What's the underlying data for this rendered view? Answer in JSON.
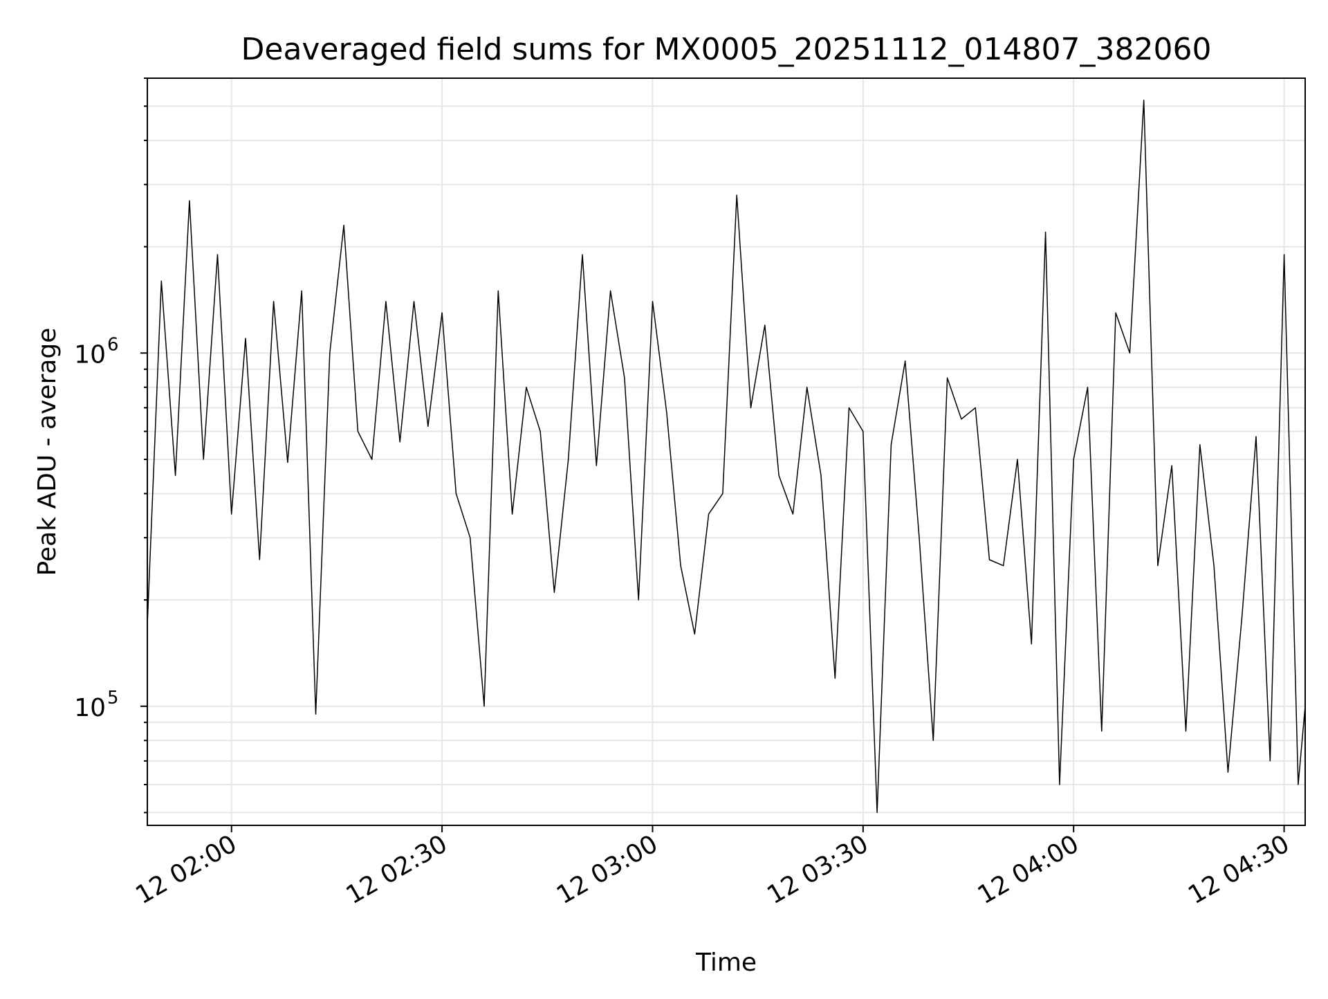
{
  "chart_data": {
    "type": "line",
    "title": "Deaveraged field sums for MX0005_20251112_014807_382060",
    "xlabel": "Time",
    "ylabel": "Peak ADU - average",
    "y_scale": "log",
    "ylim": [
      46000,
      6000000
    ],
    "xlim": [
      "12 01:48",
      "12 04:33"
    ],
    "grid": true,
    "x_ticks": [
      {
        "t": "12 02:00",
        "label": "12 02:00"
      },
      {
        "t": "12 02:30",
        "label": "12 02:30"
      },
      {
        "t": "12 03:00",
        "label": "12 03:00"
      },
      {
        "t": "12 03:30",
        "label": "12 03:30"
      },
      {
        "t": "12 04:00",
        "label": "12 04:00"
      },
      {
        "t": "12 04:30",
        "label": "12 04:30"
      }
    ],
    "y_ticks": [
      {
        "value": 100000,
        "base": "10",
        "exp": "5"
      },
      {
        "value": 1000000,
        "base": "10",
        "exp": "6"
      }
    ],
    "colors": {
      "line": "#000000",
      "grid": "#e6e6e6",
      "axes": "#000000"
    },
    "series": [
      {
        "x": [
          "12 01:48",
          "12 01:50",
          "12 01:52",
          "12 01:54",
          "12 01:56",
          "12 01:58",
          "12 02:00",
          "12 02:02",
          "12 02:04",
          "12 02:06",
          "12 02:08",
          "12 02:10",
          "12 02:12",
          "12 02:14",
          "12 02:16",
          "12 02:18",
          "12 02:20",
          "12 02:22",
          "12 02:24",
          "12 02:26",
          "12 02:28",
          "12 02:30",
          "12 02:32",
          "12 02:34",
          "12 02:36",
          "12 02:38",
          "12 02:40",
          "12 02:42",
          "12 02:44",
          "12 02:46",
          "12 02:48",
          "12 02:50",
          "12 02:52",
          "12 02:54",
          "12 02:56",
          "12 02:58",
          "12 03:00",
          "12 03:02",
          "12 03:04",
          "12 03:06",
          "12 03:08",
          "12 03:10",
          "12 03:12",
          "12 03:14",
          "12 03:16",
          "12 03:18",
          "12 03:20",
          "12 03:22",
          "12 03:24",
          "12 03:26",
          "12 03:28",
          "12 03:30",
          "12 03:32",
          "12 03:34",
          "12 03:36",
          "12 03:38",
          "12 03:40",
          "12 03:42",
          "12 03:44",
          "12 03:46",
          "12 03:48",
          "12 03:50",
          "12 03:52",
          "12 03:54",
          "12 03:56",
          "12 03:58",
          "12 04:00",
          "12 04:02",
          "12 04:04",
          "12 04:06",
          "12 04:08",
          "12 04:10",
          "12 04:12",
          "12 04:14",
          "12 04:16",
          "12 04:18",
          "12 04:20",
          "12 04:22",
          "12 04:24",
          "12 04:26",
          "12 04:28",
          "12 04:30",
          "12 04:32",
          "12 04:33"
        ],
        "values": [
          170000,
          1600000,
          450000,
          2700000,
          500000,
          1900000,
          350000,
          1100000,
          260000,
          1400000,
          490000,
          1500000,
          95000,
          1000000,
          2300000,
          600000,
          500000,
          1400000,
          560000,
          1400000,
          620000,
          1300000,
          400000,
          300000,
          100000,
          1500000,
          350000,
          800000,
          600000,
          210000,
          500000,
          1900000,
          480000,
          1500000,
          850000,
          200000,
          1400000,
          680000,
          250000,
          160000,
          350000,
          400000,
          2800000,
          700000,
          1200000,
          450000,
          350000,
          800000,
          450000,
          120000,
          700000,
          600000,
          50000,
          550000,
          950000,
          300000,
          80000,
          850000,
          650000,
          700000,
          260000,
          250000,
          500000,
          150000,
          2200000,
          60000,
          500000,
          800000,
          85000,
          1300000,
          1000000,
          5200000,
          250000,
          480000,
          85000,
          550000,
          250000,
          65000,
          180000,
          580000,
          70000,
          1900000,
          60000,
          100000
        ]
      }
    ]
  }
}
